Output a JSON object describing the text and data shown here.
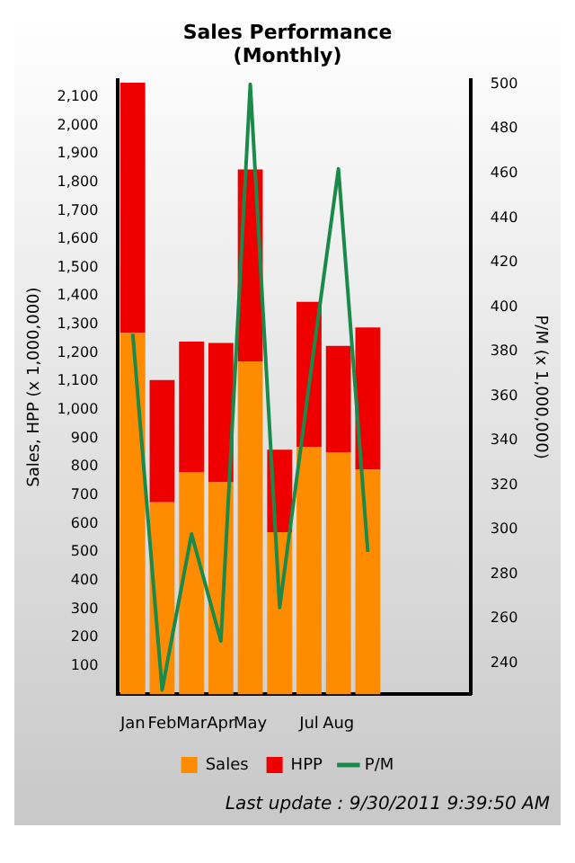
{
  "chart_data": {
    "type": "bar",
    "title": "Sales Performance",
    "subtitle": "(Monthly)",
    "ylabel": "Sales, HPP (x 1,000,000)",
    "y2label": "P/M (x 1,000,000)",
    "categories": [
      "Jan",
      "Feb",
      "Mar",
      "Apr",
      "May",
      null,
      "Jul",
      "Aug",
      null,
      null,
      null,
      null
    ],
    "stacked": true,
    "series": [
      {
        "name": "Sales",
        "color": "#ff8c00",
        "values": [
          1270,
          675,
          780,
          745,
          1170,
          570,
          870,
          850,
          790,
          null,
          null,
          null
        ]
      },
      {
        "name": "HPP",
        "color": "#ee0000",
        "values": [
          880,
          430,
          460,
          490,
          675,
          290,
          510,
          375,
          500,
          null,
          null,
          null
        ]
      },
      {
        "name": "P/M",
        "type": "line",
        "axis": "y2",
        "color": "#1a8a4a",
        "values": [
          388,
          228,
          298,
          250,
          500,
          265,
          365,
          462,
          290,
          null,
          null,
          null
        ]
      }
    ],
    "ylim": [
      0,
      2160
    ],
    "yticks": [
      100,
      200,
      300,
      400,
      500,
      600,
      700,
      800,
      900,
      {
        "value": 1000,
        "label": "1,000"
      },
      {
        "value": 1100,
        "label": "1,100"
      },
      {
        "value": 1200,
        "label": "1,200"
      },
      {
        "value": 1300,
        "label": "1,300"
      },
      {
        "value": 1400,
        "label": "1,400"
      },
      {
        "value": 1500,
        "label": "1,500"
      },
      {
        "value": 1600,
        "label": "1,600"
      },
      {
        "value": 1700,
        "label": "1,700"
      },
      {
        "value": 1800,
        "label": "1,800"
      },
      {
        "value": 1900,
        "label": "1,900"
      },
      {
        "value": 2000,
        "label": "2,000"
      },
      {
        "value": 2100,
        "label": "2,100"
      }
    ],
    "y2lim": [
      226,
      502
    ],
    "y2ticks": [
      240,
      260,
      280,
      300,
      320,
      340,
      360,
      380,
      400,
      420,
      440,
      460,
      480,
      500
    ],
    "grid": false,
    "legend": "bottom",
    "marker": "none",
    "annotations": [
      "Last update : 9/30/2011 9:39:50 AM"
    ]
  }
}
